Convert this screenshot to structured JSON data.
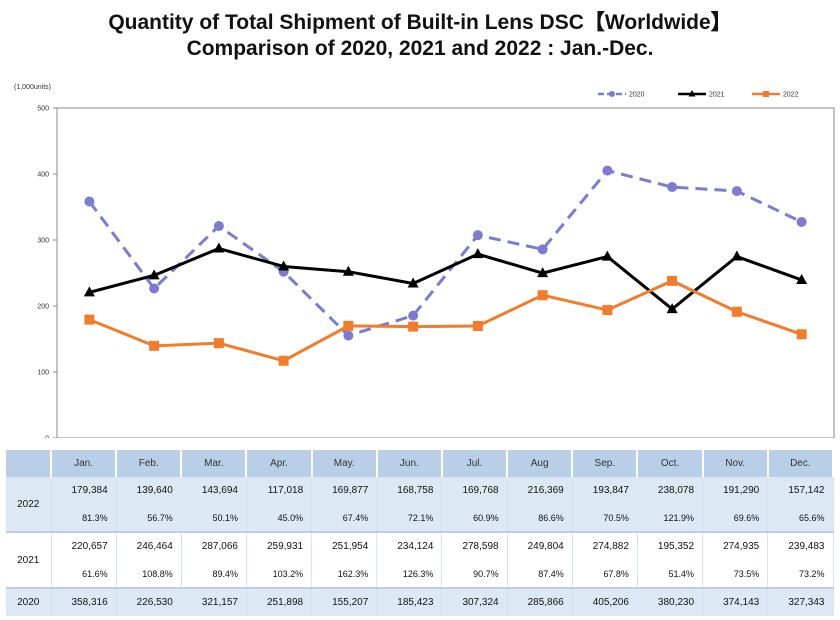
{
  "title_line1": "Quantity of Total Shipment of Built-in Lens DSC【Worldwide】",
  "title_line2": "Comparison of 2020, 2021 and 2022 : Jan.-Dec.",
  "chart_data": {
    "type": "line",
    "ylabel": "(1,000units)",
    "ylim": [
      0,
      500
    ],
    "yticks": [
      0,
      100,
      200,
      300,
      400,
      500
    ],
    "categories": [
      "Jan.",
      "Feb.",
      "Mar.",
      "Apr.",
      "May.",
      "Jun.",
      "Jul.",
      "Aug",
      "Sep.",
      "Oct.",
      "Nov.",
      "Dec."
    ],
    "legend_position": "top-right",
    "grid": false,
    "series": [
      {
        "name": "2020",
        "color": "#7b7bd1",
        "style": "dashed",
        "marker": "circle",
        "values": [
          358.316,
          226.53,
          321.157,
          251.898,
          155.207,
          185.423,
          307.324,
          285.866,
          405.206,
          380.23,
          374.143,
          327.343
        ]
      },
      {
        "name": "2021",
        "color": "#000000",
        "style": "solid",
        "marker": "triangle",
        "values": [
          220.657,
          246.464,
          287.066,
          259.931,
          251.954,
          234.124,
          278.598,
          249.804,
          274.882,
          195.352,
          274.935,
          239.483
        ]
      },
      {
        "name": "2022",
        "color": "#f27b2c",
        "style": "solid",
        "marker": "square",
        "values": [
          179.384,
          139.64,
          143.694,
          117.018,
          169.877,
          168.758,
          169.768,
          216.369,
          193.847,
          238.078,
          191.29,
          157.142
        ]
      }
    ]
  },
  "table": {
    "headers": [
      "Jan.",
      "Feb.",
      "Mar.",
      "Apr.",
      "May.",
      "Jun.",
      "Jul.",
      "Aug",
      "Sep.",
      "Oct.",
      "Nov.",
      "Dec."
    ],
    "rows": [
      {
        "year": "2022",
        "values": [
          "179,384",
          "139,640",
          "143,694",
          "117,018",
          "169,877",
          "168,758",
          "169,768",
          "216,369",
          "193,847",
          "238,078",
          "191,290",
          "157,142"
        ],
        "pct": [
          "81.3%",
          "56.7%",
          "50.1%",
          "45.0%",
          "67.4%",
          "72.1%",
          "60.9%",
          "86.6%",
          "70.5%",
          "121.9%",
          "69.6%",
          "65.6%"
        ]
      },
      {
        "year": "2021",
        "values": [
          "220,657",
          "246,464",
          "287,066",
          "259,931",
          "251,954",
          "234,124",
          "278,598",
          "249,804",
          "274,882",
          "195,352",
          "274,935",
          "239,483"
        ],
        "pct": [
          "61.6%",
          "108.8%",
          "89.4%",
          "103.2%",
          "162.3%",
          "126.3%",
          "90.7%",
          "87.4%",
          "67.8%",
          "51.4%",
          "73.5%",
          "73.2%"
        ]
      },
      {
        "year": "2020",
        "values": [
          "358,316",
          "226,530",
          "321,157",
          "251,898",
          "155,207",
          "185,423",
          "307,324",
          "285,866",
          "405,206",
          "380,230",
          "374,143",
          "327,343"
        ]
      }
    ]
  }
}
